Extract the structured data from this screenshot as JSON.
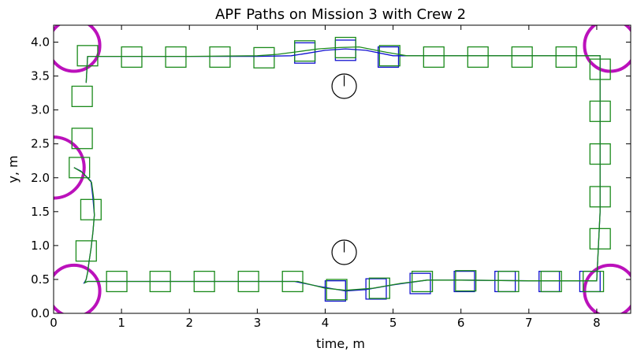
{
  "chart_data": {
    "type": "line",
    "title": "APF Paths on Mission 3 with Crew 2",
    "xlabel": "time, m",
    "ylabel": "y, m",
    "xlim": [
      0,
      8.5
    ],
    "ylim": [
      0,
      4.25
    ],
    "xticks": [
      0,
      1,
      2,
      3,
      4,
      5,
      6,
      7,
      8
    ],
    "yticks": [
      0.0,
      0.5,
      1.0,
      1.5,
      2.0,
      2.5,
      3.0,
      3.5,
      4.0
    ],
    "xtick_labels": [
      "0",
      "1",
      "2",
      "3",
      "4",
      "5",
      "6",
      "7",
      "8"
    ],
    "ytick_labels": [
      "0.0",
      "0.5",
      "1.0",
      "1.5",
      "2.0",
      "2.5",
      "3.0",
      "3.5",
      "4.0"
    ],
    "grid": false,
    "colors": {
      "series_a": "#1010d0",
      "series_b": "#1a8a1a",
      "boundary": "#bb11bb",
      "obstacle": "#000000"
    },
    "series": [
      {
        "color": "#1010d0",
        "x": [
          0.3,
          0.4,
          0.55,
          0.58,
          0.6,
          0.58,
          0.55,
          0.52,
          0.5,
          0.48,
          0.45,
          0.5,
          1.0,
          2.0,
          3.0,
          3.55,
          3.9,
          4.3,
          4.6,
          5.0,
          5.5,
          6.0,
          7.0,
          8.0,
          8.05,
          8.05,
          8.05,
          8.05,
          8.0,
          7.0,
          6.0,
          5.7,
          5.3,
          5.0,
          4.6,
          4.3,
          4.0,
          3.7,
          3.5,
          3.0,
          2.0,
          1.0,
          0.5,
          0.48
        ],
        "y": [
          2.15,
          2.1,
          1.95,
          1.7,
          1.45,
          1.2,
          0.95,
          0.75,
          0.6,
          0.5,
          0.45,
          0.47,
          0.47,
          0.47,
          0.47,
          0.47,
          0.4,
          0.33,
          0.35,
          0.42,
          0.49,
          0.49,
          0.48,
          0.48,
          1.5,
          2.5,
          3.3,
          3.8,
          3.8,
          3.8,
          3.8,
          3.8,
          3.8,
          3.8,
          3.88,
          3.9,
          3.88,
          3.83,
          3.8,
          3.79,
          3.79,
          3.79,
          3.79,
          3.4
        ]
      },
      {
        "color": "#1a8a1a",
        "x": [
          0.3,
          0.42,
          0.56,
          0.59,
          0.6,
          0.58,
          0.55,
          0.52,
          0.5,
          0.48,
          0.46,
          0.5,
          1.0,
          2.0,
          3.0,
          3.6,
          4.0,
          4.3,
          4.7,
          5.1,
          5.5,
          6.0,
          7.0,
          8.0,
          8.05,
          8.05,
          8.05,
          8.05,
          8.0,
          7.0,
          6.0,
          5.6,
          5.2,
          4.9,
          4.5,
          4.2,
          3.9,
          3.6,
          3.3,
          3.0,
          2.0,
          1.0,
          0.5,
          0.48
        ],
        "y": [
          2.15,
          2.08,
          1.93,
          1.7,
          1.45,
          1.2,
          0.95,
          0.75,
          0.6,
          0.5,
          0.45,
          0.47,
          0.47,
          0.47,
          0.47,
          0.47,
          0.37,
          0.34,
          0.37,
          0.44,
          0.49,
          0.49,
          0.48,
          0.48,
          1.5,
          2.5,
          3.3,
          3.8,
          3.8,
          3.8,
          3.8,
          3.8,
          3.8,
          3.85,
          3.93,
          3.92,
          3.9,
          3.86,
          3.82,
          3.8,
          3.79,
          3.79,
          3.79,
          3.4
        ]
      }
    ],
    "squares_green": [
      [
        0.5,
        3.8
      ],
      [
        1.15,
        3.78
      ],
      [
        1.8,
        3.78
      ],
      [
        2.45,
        3.78
      ],
      [
        3.1,
        3.77
      ],
      [
        3.7,
        3.87
      ],
      [
        4.3,
        3.92
      ],
      [
        4.95,
        3.8
      ],
      [
        5.6,
        3.78
      ],
      [
        6.25,
        3.78
      ],
      [
        6.9,
        3.78
      ],
      [
        7.55,
        3.78
      ],
      [
        0.42,
        3.2
      ],
      [
        0.42,
        2.58
      ],
      [
        0.38,
        2.15
      ],
      [
        0.55,
        1.53
      ],
      [
        0.48,
        0.92
      ],
      [
        0.93,
        0.47
      ],
      [
        1.57,
        0.47
      ],
      [
        2.22,
        0.47
      ],
      [
        2.87,
        0.47
      ],
      [
        3.52,
        0.47
      ],
      [
        4.17,
        0.35
      ],
      [
        4.8,
        0.37
      ],
      [
        5.43,
        0.47
      ],
      [
        6.07,
        0.48
      ],
      [
        6.7,
        0.47
      ],
      [
        7.33,
        0.47
      ],
      [
        7.95,
        0.47
      ],
      [
        8.05,
        3.6
      ],
      [
        8.05,
        2.98
      ],
      [
        8.05,
        2.35
      ],
      [
        8.05,
        1.72
      ],
      [
        8.05,
        1.1
      ]
    ],
    "squares_blue": [
      [
        3.7,
        3.84
      ],
      [
        4.3,
        3.88
      ],
      [
        4.93,
        3.78
      ],
      [
        4.15,
        0.33
      ],
      [
        4.75,
        0.36
      ],
      [
        5.4,
        0.44
      ],
      [
        6.05,
        0.47
      ],
      [
        6.65,
        0.47
      ],
      [
        7.3,
        0.47
      ],
      [
        7.9,
        0.47
      ]
    ],
    "square_half_width": 0.15,
    "boundary_circles": [
      {
        "x": 0.3,
        "y": 3.95,
        "r": 0.38
      },
      {
        "x": 0.0,
        "y": 2.15,
        "r": 0.45
      },
      {
        "x": 0.3,
        "y": 0.33,
        "r": 0.38
      },
      {
        "x": 8.2,
        "y": 3.95,
        "r": 0.38
      },
      {
        "x": 8.2,
        "y": 0.33,
        "r": 0.38
      }
    ],
    "obstacles": [
      {
        "x": 4.28,
        "y": 3.35,
        "r": 0.18
      },
      {
        "x": 4.28,
        "y": 0.9,
        "r": 0.18
      }
    ]
  }
}
